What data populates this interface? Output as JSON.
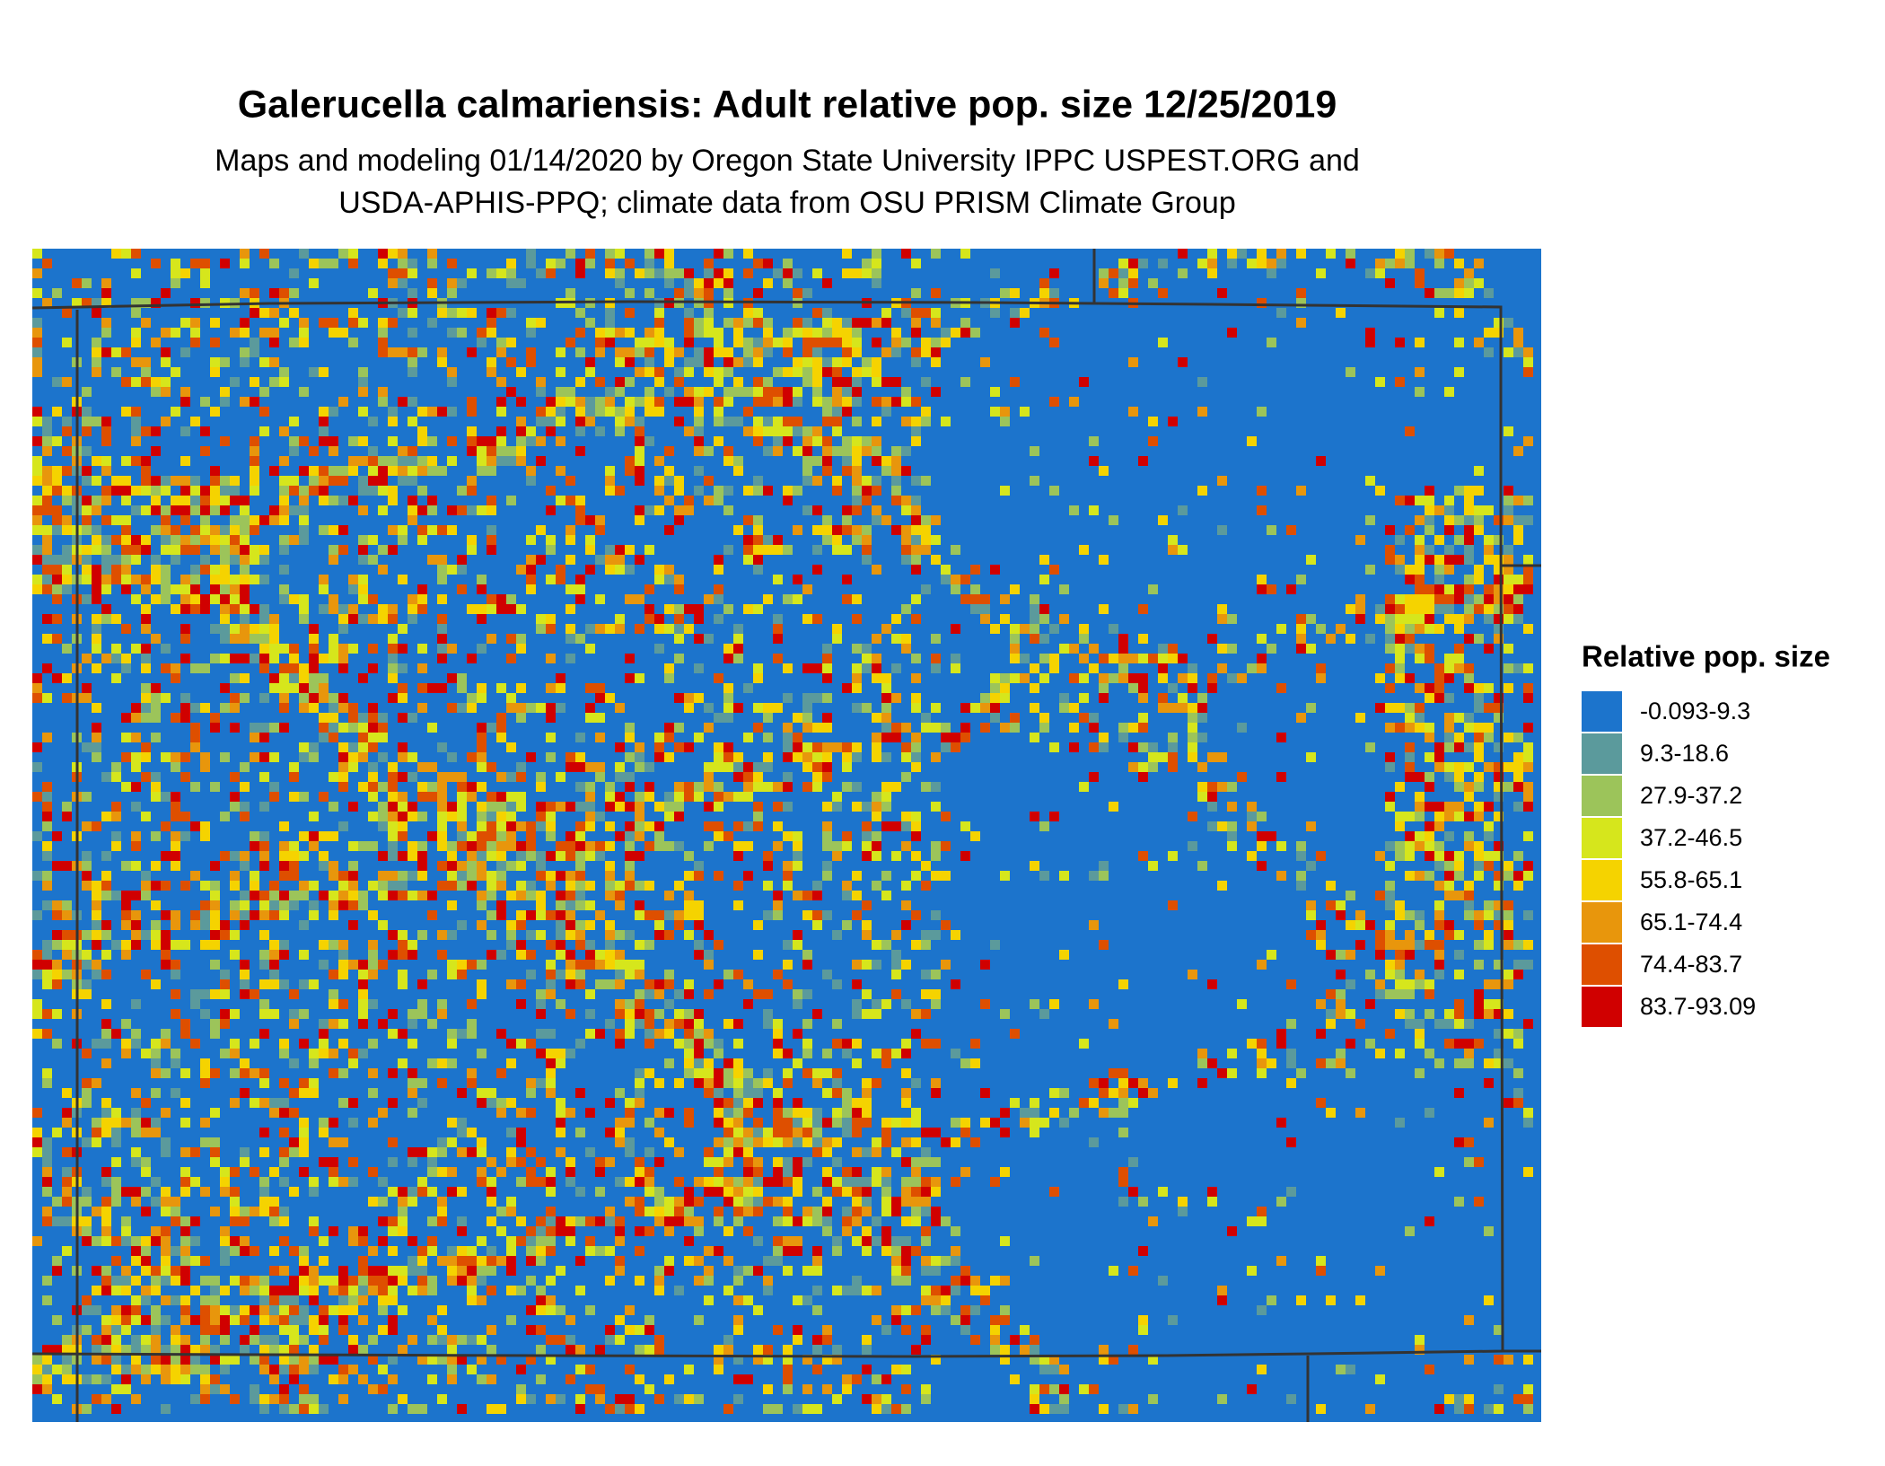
{
  "title": "Galerucella calmariensis: Adult relative pop. size 12/25/2019",
  "subtitle": [
    "Maps and modeling 01/14/2020 by Oregon State University IPPC USPEST.ORG and",
    "USDA-APHIS-PPQ; climate data from OSU PRISM Climate Group"
  ],
  "legend": {
    "title": "Relative pop. size",
    "items": [
      {
        "label": "-0.093-9.3",
        "color": "#1c74cc"
      },
      {
        "label": "9.3-18.6",
        "color": "#5b9a9c"
      },
      {
        "label": "27.9-37.2",
        "color": "#9cc45a"
      },
      {
        "label": "37.2-46.5",
        "color": "#d6e61c"
      },
      {
        "label": "55.8-65.1",
        "color": "#f5d300"
      },
      {
        "label": "65.1-74.4",
        "color": "#e8960c"
      },
      {
        "label": "74.4-83.7",
        "color": "#de4f00"
      },
      {
        "label": "83.7-93.09",
        "color": "#d00000"
      }
    ]
  }
}
